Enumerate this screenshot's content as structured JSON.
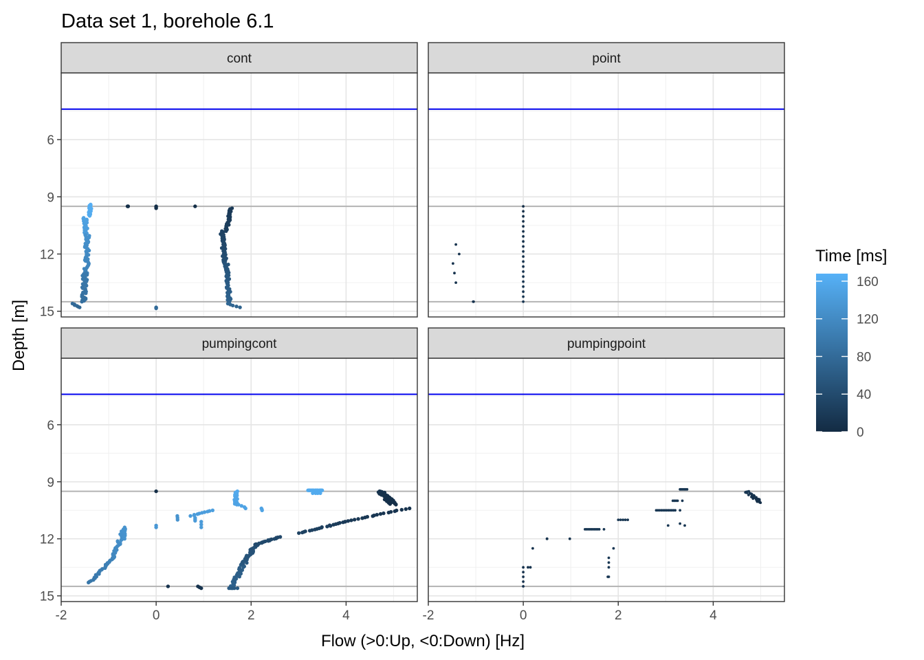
{
  "title": "Data set 1, borehole 6.1",
  "chart_data": {
    "type": "scatter",
    "title": "Data set 1, borehole 6.1",
    "xlabel": "Flow (>0:Up, <0:Down) [Hz]",
    "ylabel": "Depth [m]",
    "xlim": [
      -2,
      5.5
    ],
    "ylim": [
      2.5,
      15.3
    ],
    "y_reversed": true,
    "x_ticks": [
      -2,
      0,
      2,
      4
    ],
    "x_tick_labels": [
      "-2",
      "0",
      "2",
      "4"
    ],
    "y_ticks": [
      6,
      9,
      12,
      15
    ],
    "y_tick_labels": [
      "6",
      "9",
      "12",
      "15"
    ],
    "grid": true,
    "reference_lines": {
      "water_level_depth": 4.4,
      "water_level_color": "#0000ee",
      "screen_top_depth": 9.5,
      "screen_bottom_depth": 14.5,
      "screen_color": "#b3b3b3"
    },
    "color_scale": {
      "title": "Time [ms]",
      "min": 0,
      "max": 168,
      "ticks": [
        0,
        40,
        80,
        120,
        160
      ],
      "tick_labels": [
        "0",
        "40",
        "80",
        "120",
        "160"
      ],
      "low_color": "#132b43",
      "high_color": "#56b1f7",
      "legend_position": "right"
    },
    "panels": [
      {
        "label": "cont",
        "point_size": "large",
        "segments": [
          {
            "from": [
              -1.38,
              9.4
            ],
            "to": [
              -1.4,
              10.0
            ],
            "n": 20,
            "t": [
              165,
              160
            ],
            "jx": 0.03
          },
          {
            "from": [
              -1.5,
              10.1
            ],
            "to": [
              -1.48,
              11.0
            ],
            "n": 22,
            "t": [
              150,
              140
            ],
            "jx": 0.04
          },
          {
            "from": [
              -1.45,
              11.0
            ],
            "to": [
              -1.47,
              13.0
            ],
            "n": 45,
            "t": [
              130,
              110
            ],
            "jx": 0.05
          },
          {
            "from": [
              -1.5,
              13.0
            ],
            "to": [
              -1.52,
              14.5
            ],
            "n": 35,
            "t": [
              100,
              85
            ],
            "jx": 0.05
          },
          {
            "from": [
              -1.75,
              14.6
            ],
            "to": [
              -1.6,
              14.8
            ],
            "n": 6,
            "t": [
              80,
              75
            ],
            "jx": 0.03
          },
          {
            "from": [
              1.58,
              9.6
            ],
            "to": [
              1.48,
              10.8
            ],
            "n": 30,
            "t": [
              18,
              25
            ],
            "jx": 0.03
          },
          {
            "from": [
              1.38,
              10.8
            ],
            "to": [
              1.45,
              12.5
            ],
            "n": 45,
            "t": [
              30,
              45
            ],
            "jx": 0.04
          },
          {
            "from": [
              1.48,
              12.5
            ],
            "to": [
              1.55,
              14.6
            ],
            "n": 45,
            "t": [
              50,
              70
            ],
            "jx": 0.04
          },
          {
            "from": [
              1.5,
              14.6
            ],
            "to": [
              1.75,
              14.8
            ],
            "n": 5,
            "t": [
              75,
              70
            ],
            "jx": 0.02
          },
          {
            "from": [
              -0.6,
              9.5
            ],
            "to": [
              -0.6,
              9.5
            ],
            "n": 3,
            "t": [
              5,
              5
            ],
            "jx": 0.01
          },
          {
            "from": [
              0.0,
              9.5
            ],
            "to": [
              0.0,
              9.6
            ],
            "n": 3,
            "t": [
              5,
              5
            ],
            "jx": 0.0
          },
          {
            "from": [
              0.82,
              9.5
            ],
            "to": [
              0.82,
              9.5
            ],
            "n": 1,
            "t": [
              5,
              5
            ],
            "jx": 0.0
          },
          {
            "from": [
              0.0,
              14.8
            ],
            "to": [
              0.0,
              14.85
            ],
            "n": 3,
            "t": [
              80,
              80
            ],
            "jx": 0.0
          }
        ]
      },
      {
        "label": "point",
        "point_size": "small",
        "segments": [
          {
            "from": [
              0.0,
              9.5
            ],
            "to": [
              0.0,
              14.5
            ],
            "n": 20,
            "t": [
              5,
              15
            ],
            "jx": 0.0
          },
          {
            "from": [
              -1.42,
              11.5
            ],
            "to": [
              -1.42,
              11.5
            ],
            "n": 1,
            "t": [
              10,
              10
            ],
            "jx": 0.0
          },
          {
            "from": [
              -1.35,
              12.0
            ],
            "to": [
              -1.35,
              12.0
            ],
            "n": 1,
            "t": [
              10,
              10
            ],
            "jx": 0.0
          },
          {
            "from": [
              -1.48,
              12.5
            ],
            "to": [
              -1.48,
              12.5
            ],
            "n": 1,
            "t": [
              10,
              10
            ],
            "jx": 0.0
          },
          {
            "from": [
              -1.45,
              13.0
            ],
            "to": [
              -1.45,
              13.0
            ],
            "n": 1,
            "t": [
              10,
              10
            ],
            "jx": 0.0
          },
          {
            "from": [
              -1.42,
              13.5
            ],
            "to": [
              -1.42,
              13.5
            ],
            "n": 1,
            "t": [
              10,
              10
            ],
            "jx": 0.0
          },
          {
            "from": [
              -1.05,
              14.5
            ],
            "to": [
              -1.05,
              14.5
            ],
            "n": 2,
            "t": [
              10,
              10
            ],
            "jx": 0.02
          }
        ]
      },
      {
        "label": "pumpingcont",
        "point_size": "large",
        "segments": [
          {
            "from": [
              -1.4,
              14.3
            ],
            "to": [
              -0.9,
              13.0
            ],
            "n": 30,
            "t": [
              95,
              110
            ],
            "jx": 0.03
          },
          {
            "from": [
              -0.9,
              13.0
            ],
            "to": [
              -0.68,
              11.5
            ],
            "n": 30,
            "t": [
              115,
              130
            ],
            "jx": 0.04
          },
          {
            "from": [
              -0.66,
              11.4
            ],
            "to": [
              -0.66,
              12.0
            ],
            "n": 8,
            "t": [
              130,
              130
            ],
            "jx": 0.01
          },
          {
            "from": [
              0.0,
              9.5
            ],
            "to": [
              0.0,
              9.5
            ],
            "n": 1,
            "t": [
              5,
              5
            ],
            "jx": 0.0
          },
          {
            "from": [
              0.0,
              11.3
            ],
            "to": [
              0.0,
              11.4
            ],
            "n": 2,
            "t": [
              135,
              135
            ],
            "jx": 0.0
          },
          {
            "from": [
              0.45,
              10.8
            ],
            "to": [
              0.45,
              11.0
            ],
            "n": 3,
            "t": [
              130,
              130
            ],
            "jx": 0.01
          },
          {
            "from": [
              0.72,
              10.8
            ],
            "to": [
              1.2,
              10.5
            ],
            "n": 10,
            "t": [
              140,
              145
            ],
            "jx": 0.03
          },
          {
            "from": [
              0.82,
              10.9
            ],
            "to": [
              0.82,
              11.05
            ],
            "n": 3,
            "t": [
              140,
              140
            ],
            "jx": 0.0
          },
          {
            "from": [
              0.95,
              11.1
            ],
            "to": [
              0.95,
              11.4
            ],
            "n": 3,
            "t": [
              140,
              140
            ],
            "jx": 0.0
          },
          {
            "from": [
              1.68,
              9.5
            ],
            "to": [
              1.68,
              10.2
            ],
            "n": 20,
            "t": [
              160,
              150
            ],
            "jx": 0.04
          },
          {
            "from": [
              1.75,
              10.2
            ],
            "to": [
              1.9,
              10.4
            ],
            "n": 4,
            "t": [
              150,
              150
            ],
            "jx": 0.02
          },
          {
            "from": [
              2.22,
              10.4
            ],
            "to": [
              2.25,
              10.5
            ],
            "n": 3,
            "t": [
              150,
              150
            ],
            "jx": 0.02
          },
          {
            "from": [
              3.2,
              9.45
            ],
            "to": [
              3.5,
              9.45
            ],
            "n": 18,
            "t": [
              160,
              160
            ],
            "jx": 0.01
          },
          {
            "from": [
              3.3,
              9.6
            ],
            "to": [
              3.45,
              9.6
            ],
            "n": 4,
            "t": [
              160,
              160
            ],
            "jx": 0.01
          },
          {
            "from": [
              1.58,
              14.6
            ],
            "to": [
              1.85,
              13.3
            ],
            "n": 35,
            "t": [
              70,
              60
            ],
            "jx": 0.05
          },
          {
            "from": [
              1.85,
              13.3
            ],
            "to": [
              2.1,
              12.3
            ],
            "n": 30,
            "t": [
              55,
              45
            ],
            "jx": 0.05
          },
          {
            "from": [
              2.1,
              12.3
            ],
            "to": [
              2.6,
              11.9
            ],
            "n": 20,
            "t": [
              40,
              35
            ],
            "jx": 0.03
          },
          {
            "from": [
              3.0,
              11.7
            ],
            "to": [
              4.0,
              11.1
            ],
            "n": 20,
            "t": [
              30,
              20
            ],
            "jx": 0.04
          },
          {
            "from": [
              4.0,
              11.1
            ],
            "to": [
              5.3,
              10.4
            ],
            "n": 20,
            "t": [
              18,
              10
            ],
            "jx": 0.04
          },
          {
            "from": [
              4.72,
              9.5
            ],
            "to": [
              5.0,
              10.2
            ],
            "n": 45,
            "t": [
              10,
              5
            ],
            "jx": 0.08
          },
          {
            "from": [
              0.25,
              14.5
            ],
            "to": [
              0.25,
              14.5
            ],
            "n": 1,
            "t": [
              10,
              10
            ],
            "jx": 0.0
          },
          {
            "from": [
              0.88,
              14.5
            ],
            "to": [
              0.95,
              14.6
            ],
            "n": 3,
            "t": [
              10,
              10
            ],
            "jx": 0.0
          },
          {
            "from": [
              1.55,
              14.6
            ],
            "to": [
              1.7,
              14.6
            ],
            "n": 5,
            "t": [
              60,
              60
            ],
            "jx": 0.02
          }
        ]
      },
      {
        "label": "pumpingpoint",
        "point_size": "small",
        "segments": [
          {
            "from": [
              0.0,
              13.5
            ],
            "to": [
              0.0,
              14.5
            ],
            "n": 5,
            "t": [
              10,
              10
            ],
            "jx": 0.0
          },
          {
            "from": [
              0.1,
              13.5
            ],
            "to": [
              0.15,
              13.5
            ],
            "n": 2,
            "t": [
              10,
              10
            ],
            "jx": 0.0
          },
          {
            "from": [
              0.2,
              12.5
            ],
            "to": [
              0.2,
              12.5
            ],
            "n": 1,
            "t": [
              10,
              10
            ],
            "jx": 0.0
          },
          {
            "from": [
              0.5,
              12.0
            ],
            "to": [
              0.5,
              12.0
            ],
            "n": 2,
            "t": [
              10,
              10
            ],
            "jx": 0.0
          },
          {
            "from": [
              0.98,
              12.0
            ],
            "to": [
              0.98,
              12.0
            ],
            "n": 1,
            "t": [
              10,
              10
            ],
            "jx": 0.0
          },
          {
            "from": [
              1.3,
              11.5
            ],
            "to": [
              1.6,
              11.5
            ],
            "n": 10,
            "t": [
              15,
              15
            ],
            "jx": 0.0
          },
          {
            "from": [
              1.7,
              11.5
            ],
            "to": [
              1.7,
              11.5
            ],
            "n": 1,
            "t": [
              15,
              15
            ],
            "jx": 0.0
          },
          {
            "from": [
              1.8,
              13.0
            ],
            "to": [
              1.8,
              13.5
            ],
            "n": 3,
            "t": [
              15,
              15
            ],
            "jx": 0.0
          },
          {
            "from": [
              1.78,
              14.0
            ],
            "to": [
              1.8,
              14.0
            ],
            "n": 2,
            "t": [
              15,
              15
            ],
            "jx": 0.0
          },
          {
            "from": [
              1.9,
              12.5
            ],
            "to": [
              1.9,
              12.5
            ],
            "n": 1,
            "t": [
              15,
              15
            ],
            "jx": 0.0
          },
          {
            "from": [
              2.0,
              11.0
            ],
            "to": [
              2.2,
              11.0
            ],
            "n": 5,
            "t": [
              15,
              15
            ],
            "jx": 0.0
          },
          {
            "from": [
              2.8,
              10.5
            ],
            "to": [
              3.2,
              10.5
            ],
            "n": 12,
            "t": [
              15,
              15
            ],
            "jx": 0.0
          },
          {
            "from": [
              3.05,
              11.3
            ],
            "to": [
              3.05,
              11.3
            ],
            "n": 1,
            "t": [
              15,
              15
            ],
            "jx": 0.0
          },
          {
            "from": [
              3.15,
              10.0
            ],
            "to": [
              3.25,
              10.0
            ],
            "n": 4,
            "t": [
              15,
              15
            ],
            "jx": 0.0
          },
          {
            "from": [
              3.3,
              9.4
            ],
            "to": [
              3.45,
              9.4
            ],
            "n": 6,
            "t": [
              15,
              15
            ],
            "jx": 0.0
          },
          {
            "from": [
              3.35,
              10.0
            ],
            "to": [
              3.35,
              10.0
            ],
            "n": 1,
            "t": [
              15,
              15
            ],
            "jx": 0.0
          },
          {
            "from": [
              3.3,
              10.5
            ],
            "to": [
              3.3,
              10.5
            ],
            "n": 1,
            "t": [
              15,
              15
            ],
            "jx": 0.0
          },
          {
            "from": [
              3.3,
              11.2
            ],
            "to": [
              3.4,
              11.3
            ],
            "n": 2,
            "t": [
              15,
              15
            ],
            "jx": 0.0
          },
          {
            "from": [
              4.7,
              9.5
            ],
            "to": [
              5.0,
              10.1
            ],
            "n": 35,
            "t": [
              15,
              5
            ],
            "jx": 0.07
          }
        ]
      }
    ]
  }
}
